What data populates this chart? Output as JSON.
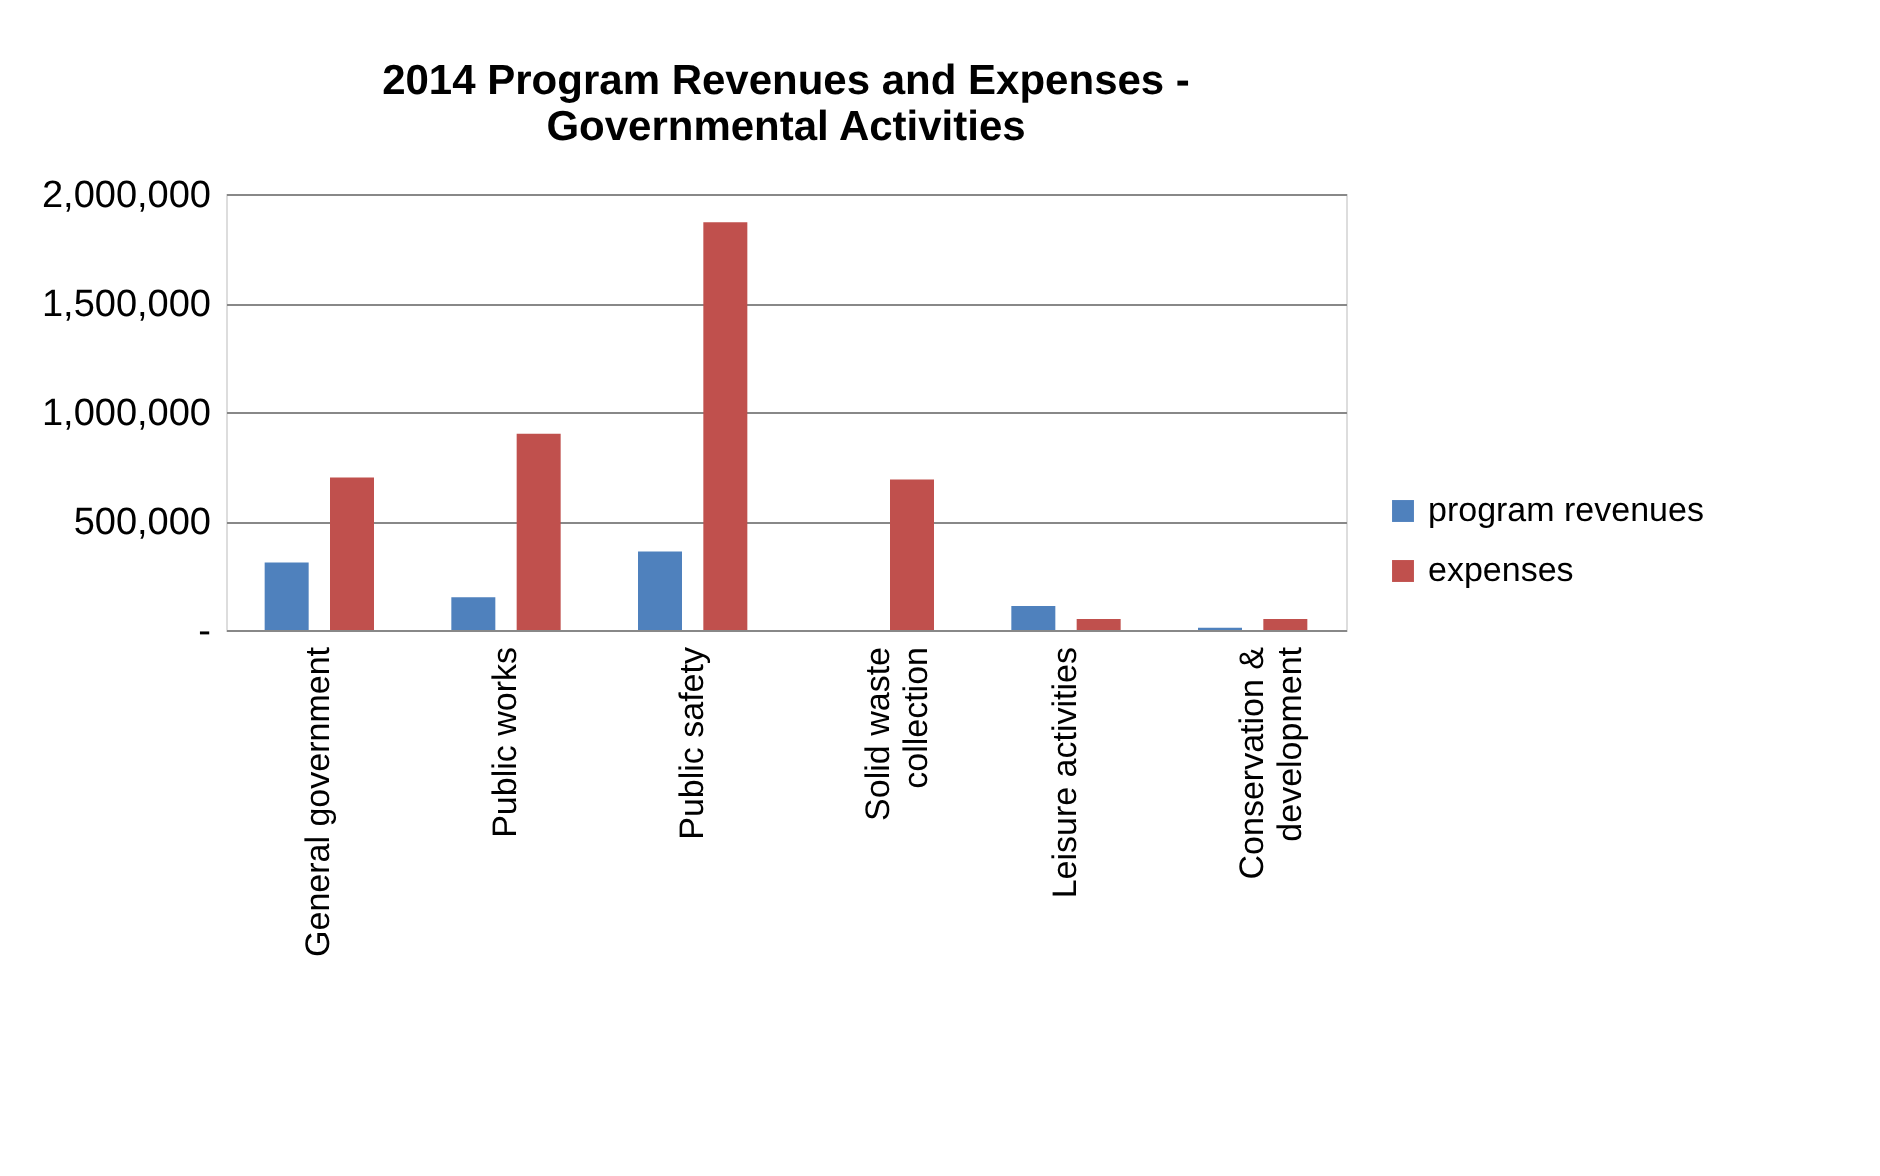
{
  "chart_data": {
    "type": "bar",
    "title": "2014 Program Revenues and Expenses -\nGovernmental Activities",
    "categories": [
      "General government",
      "Public works",
      "Public safety",
      "Solid waste\ncollection",
      "Leisure activities",
      "Conservation &\ndevelopment"
    ],
    "series": [
      {
        "name": "program revenues",
        "color": "#4f81bd",
        "values": [
          310000,
          150000,
          360000,
          0,
          110000,
          10000
        ]
      },
      {
        "name": "expenses",
        "color": "#c0504d",
        "values": [
          700000,
          900000,
          1870000,
          690000,
          50000,
          50000
        ]
      }
    ],
    "ylim": [
      0,
      2000000
    ],
    "yticks": [
      {
        "value": 0,
        "label": "-"
      },
      {
        "value": 500000,
        "label": "500,000"
      },
      {
        "value": 1000000,
        "label": "1,000,000"
      },
      {
        "value": 1500000,
        "label": "1,500,000"
      },
      {
        "value": 2000000,
        "label": "2,000,000"
      }
    ],
    "grid": "y",
    "legend": "right"
  }
}
